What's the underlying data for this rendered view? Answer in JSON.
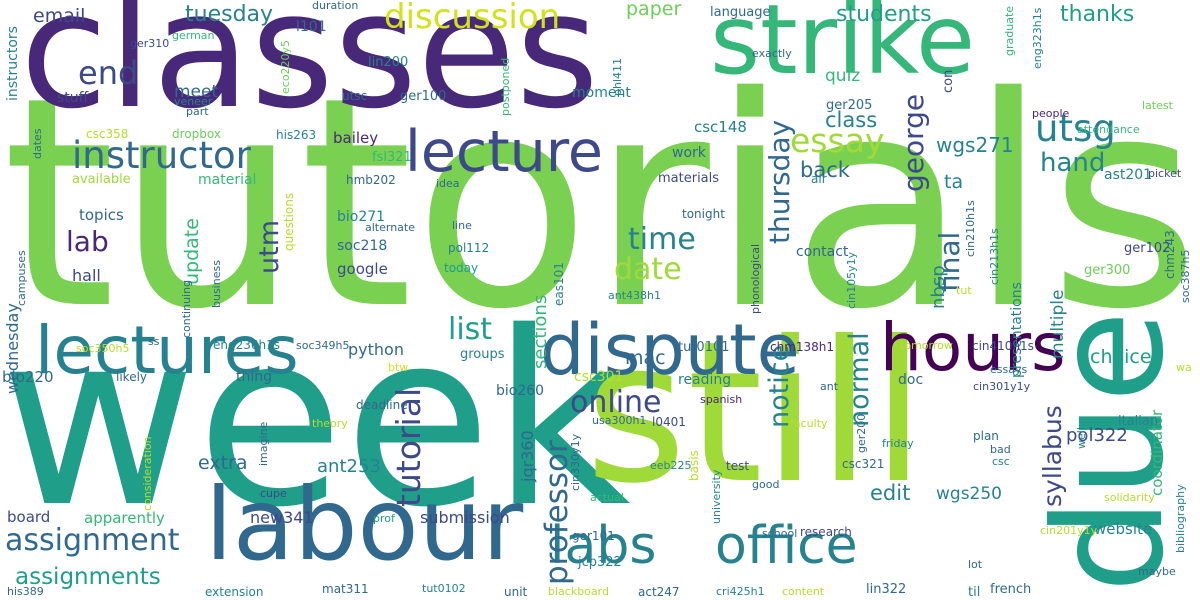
{
  "palette": {
    "dark_purple": "#440154",
    "purple": "#482878",
    "indigo": "#3e4989",
    "blue": "#31688e",
    "teal_blue": "#26828e",
    "teal": "#1f9e89",
    "green": "#35b779",
    "lime": "#6ece58",
    "yellow_green": "#b5de2b",
    "yellow": "#fde725"
  },
  "words": [
    {
      "text": "tutorials",
      "color": "#7ad151"
    },
    {
      "text": "week",
      "color": "#1f9e89"
    },
    {
      "text": "classes",
      "color": "#482878"
    },
    {
      "text": "still",
      "color": "#a0da39"
    },
    {
      "text": "strike",
      "color": "#35b779"
    },
    {
      "text": "due",
      "color": "#1f9e89"
    },
    {
      "text": "labour",
      "color": "#31688e"
    },
    {
      "text": "lectures",
      "color": "#26828e"
    },
    {
      "text": "dispute",
      "color": "#31688e"
    },
    {
      "text": "hours",
      "color": "#440154"
    },
    {
      "text": "lecture",
      "color": "#3e4989"
    },
    {
      "text": "labs",
      "color": "#26828e"
    },
    {
      "text": "office",
      "color": "#26828e"
    },
    {
      "text": "instructor",
      "color": "#31688e"
    },
    {
      "text": "utsg",
      "color": "#26828e"
    },
    {
      "text": "essay",
      "color": "#a0da39"
    },
    {
      "text": "tutorial",
      "color": "#3e4989"
    },
    {
      "text": "professor",
      "color": "#31688e"
    },
    {
      "text": "discussion",
      "color": "#d2e21b"
    },
    {
      "text": "online",
      "color": "#3e4989"
    },
    {
      "text": "end",
      "color": "#3e4989"
    },
    {
      "text": "assignment",
      "color": "#31688e"
    },
    {
      "text": "assignments",
      "color": "#1f9e89"
    },
    {
      "text": "george",
      "color": "#3e4989"
    },
    {
      "text": "thursday",
      "color": "#31688e"
    },
    {
      "text": "time",
      "color": "#26828e"
    },
    {
      "text": "date",
      "color": "#a0da39"
    },
    {
      "text": "list",
      "color": "#1f9e89"
    },
    {
      "text": "hand",
      "color": "#26828e"
    },
    {
      "text": "notice",
      "color": "#26828e"
    },
    {
      "text": "final",
      "color": "#31688e"
    },
    {
      "text": "normal",
      "color": "#26828e"
    },
    {
      "text": "syllabus",
      "color": "#3e4989"
    },
    {
      "text": "lab",
      "color": "#482878"
    },
    {
      "text": "utm",
      "color": "#3e4989"
    },
    {
      "text": "tuesday",
      "color": "#26828e"
    },
    {
      "text": "students",
      "color": "#1f9e89"
    },
    {
      "text": "thanks",
      "color": "#1f9e89"
    },
    {
      "text": "email",
      "color": "#3e4989"
    },
    {
      "text": "paper",
      "color": "#6ece58"
    },
    {
      "text": "quiz",
      "color": "#35b779"
    },
    {
      "text": "meet",
      "color": "#31688e"
    },
    {
      "text": "wgs271",
      "color": "#26828e"
    },
    {
      "text": "class",
      "color": "#26828e"
    },
    {
      "text": "update",
      "color": "#35b779"
    },
    {
      "text": "back",
      "color": "#31688e"
    },
    {
      "text": "ta",
      "color": "#26828e"
    },
    {
      "text": "nbsp",
      "color": "#26828e"
    },
    {
      "text": "edit",
      "color": "#26828e"
    },
    {
      "text": "choice",
      "color": "#1f9e89"
    },
    {
      "text": "multiple",
      "color": "#26828e"
    },
    {
      "text": "extra",
      "color": "#31688e"
    },
    {
      "text": "wednesday",
      "color": "#31688e"
    },
    {
      "text": "ant253",
      "color": "#26828e"
    },
    {
      "text": "mac",
      "color": "#31688e"
    },
    {
      "text": "sections",
      "color": "#35b779"
    },
    {
      "text": "pol322",
      "color": "#3e4989"
    },
    {
      "text": "wgs250",
      "color": "#26828e"
    },
    {
      "text": "presentations",
      "color": "#26828e"
    },
    {
      "text": "coordinator",
      "color": "#35b779"
    },
    {
      "text": "python",
      "color": "#31688e"
    },
    {
      "text": "new341",
      "color": "#3e4989"
    },
    {
      "text": "submission",
      "color": "#3e4989"
    },
    {
      "text": "board",
      "color": "#3e4989"
    },
    {
      "text": "apparently",
      "color": "#35b779"
    },
    {
      "text": "jqr360",
      "color": "#31688e"
    },
    {
      "text": "bio220",
      "color": "#31688e"
    },
    {
      "text": "topics",
      "color": "#31688e"
    },
    {
      "text": "hall",
      "color": "#3e4989"
    },
    {
      "text": "google",
      "color": "#3e4989"
    },
    {
      "text": "soc218",
      "color": "#31688e"
    },
    {
      "text": "bio271",
      "color": "#26828e"
    },
    {
      "text": "available",
      "color": "#a0da39"
    },
    {
      "text": "material",
      "color": "#35b779"
    },
    {
      "text": "bailey",
      "color": "#482878"
    },
    {
      "text": "stuff",
      "color": "#3e4989"
    },
    {
      "text": "instructors",
      "color": "#26828e"
    },
    {
      "text": "csc148",
      "color": "#26828e"
    },
    {
      "text": "work",
      "color": "#31688e"
    },
    {
      "text": "materials",
      "color": "#3e4989"
    },
    {
      "text": "contact",
      "color": "#31688e"
    },
    {
      "text": "doc",
      "color": "#31688e"
    },
    {
      "text": "reading",
      "color": "#26828e"
    },
    {
      "text": "bio260",
      "color": "#31688e"
    },
    {
      "text": "csc301",
      "color": "#b5de2b"
    },
    {
      "text": "thing",
      "color": "#31688e"
    },
    {
      "text": "groups",
      "color": "#26828e"
    },
    {
      "text": "questions",
      "color": "#b5de2b"
    },
    {
      "text": "moment",
      "color": "#26828e"
    },
    {
      "text": "language",
      "color": "#31688e"
    },
    {
      "text": "con",
      "color": "#3e4989"
    },
    {
      "text": "ger205",
      "color": "#31688e"
    },
    {
      "text": "ast201",
      "color": "#26828e"
    },
    {
      "text": "ger102",
      "color": "#3e4989"
    },
    {
      "text": "ger300",
      "color": "#6ece58"
    },
    {
      "text": "website",
      "color": "#26828e"
    },
    {
      "text": "bibliography",
      "color": "#26828e"
    },
    {
      "text": "picket",
      "color": "#3e4989"
    },
    {
      "text": "people",
      "color": "#482878"
    },
    {
      "text": "attendance",
      "color": "#35b779"
    },
    {
      "text": "latest",
      "color": "#6ece58"
    },
    {
      "text": "graduate",
      "color": "#35b779"
    },
    {
      "text": "eng323h1s",
      "color": "#26828e"
    },
    {
      "text": "l101",
      "color": "#31688e"
    },
    {
      "text": "duration",
      "color": "#31688e"
    },
    {
      "text": "ger310",
      "color": "#3e4989"
    },
    {
      "text": "german",
      "color": "#35b779"
    },
    {
      "text": "part",
      "color": "#31688e"
    },
    {
      "text": "veneer",
      "color": "#26828e"
    },
    {
      "text": "eco220y5",
      "color": "#6ece58"
    },
    {
      "text": "utsc",
      "color": "#31688e"
    },
    {
      "text": "lin200",
      "color": "#26828e"
    },
    {
      "text": "ger100",
      "color": "#31688e"
    },
    {
      "text": "csc358",
      "color": "#b5de2b"
    },
    {
      "text": "dropbox",
      "color": "#6ece58"
    },
    {
      "text": "his263",
      "color": "#26828e"
    },
    {
      "text": "fsl321",
      "color": "#35b779"
    },
    {
      "text": "hmb202",
      "color": "#31688e"
    },
    {
      "text": "idea",
      "color": "#31688e"
    },
    {
      "text": "postponed",
      "color": "#35b779"
    },
    {
      "text": "phl411",
      "color": "#26828e"
    },
    {
      "text": "exactly",
      "color": "#31688e"
    },
    {
      "text": "dates",
      "color": "#31688e"
    },
    {
      "text": "tonight",
      "color": "#31688e"
    },
    {
      "text": "air",
      "color": "#26828e"
    },
    {
      "text": "line",
      "color": "#31688e"
    },
    {
      "text": "alternate",
      "color": "#31688e"
    },
    {
      "text": "pol112",
      "color": "#26828e"
    },
    {
      "text": "today",
      "color": "#1f9e89"
    },
    {
      "text": "business",
      "color": "#31688e"
    },
    {
      "text": "campuses",
      "color": "#31688e"
    },
    {
      "text": "continuing",
      "color": "#31688e"
    },
    {
      "text": "eas101",
      "color": "#26828e"
    },
    {
      "text": "cin105y1y",
      "color": "#26828e"
    },
    {
      "text": "cin210h1s",
      "color": "#31688e"
    },
    {
      "text": "cin213h1s",
      "color": "#26828e"
    },
    {
      "text": "chm243",
      "color": "#31688e"
    },
    {
      "text": "soc387h5",
      "color": "#31688e"
    },
    {
      "text": "phonological",
      "color": "#3e4989"
    },
    {
      "text": "tut",
      "color": "#b5de2b"
    },
    {
      "text": "ant438h1",
      "color": "#26828e"
    },
    {
      "text": "soc350h5",
      "color": "#b5de2b"
    },
    {
      "text": "ss",
      "color": "#31688e"
    },
    {
      "text": "eng236h1s",
      "color": "#26828e"
    },
    {
      "text": "soc349h5",
      "color": "#31688e"
    },
    {
      "text": "tut0101",
      "color": "#31688e"
    },
    {
      "text": "chm138h1",
      "color": "#482878"
    },
    {
      "text": "tomorrow",
      "color": "#b5de2b"
    },
    {
      "text": "cin410h1s",
      "color": "#3e4989"
    },
    {
      "text": "btw",
      "color": "#d2e21b"
    },
    {
      "text": "likely",
      "color": "#31688e"
    },
    {
      "text": "deadline",
      "color": "#31688e"
    },
    {
      "text": "essays",
      "color": "#31688e"
    },
    {
      "text": "cin301y1y",
      "color": "#3e4989"
    },
    {
      "text": "ant",
      "color": "#31688e"
    },
    {
      "text": "spanish",
      "color": "#482878"
    },
    {
      "text": "italian",
      "color": "#26828e"
    },
    {
      "text": "faculty",
      "color": "#b5de2b"
    },
    {
      "text": "ger200",
      "color": "#31688e"
    },
    {
      "text": "usa300h1",
      "color": "#31688e"
    },
    {
      "text": "l0401",
      "color": "#3e4989"
    },
    {
      "text": "theory",
      "color": "#b5de2b"
    },
    {
      "text": "imagine",
      "color": "#31688e"
    },
    {
      "text": "consideration",
      "color": "#b5de2b"
    },
    {
      "text": "friday",
      "color": "#26828e"
    },
    {
      "text": "plan",
      "color": "#31688e"
    },
    {
      "text": "bad",
      "color": "#31688e"
    },
    {
      "text": "csc",
      "color": "#26828e"
    },
    {
      "text": "well",
      "color": "#26828e"
    },
    {
      "text": "csc321",
      "color": "#31688e"
    },
    {
      "text": "eeb225",
      "color": "#26828e"
    },
    {
      "text": "test",
      "color": "#3e4989"
    },
    {
      "text": "cupe",
      "color": "#3e4989"
    },
    {
      "text": "cin330y1y",
      "color": "#31688e"
    },
    {
      "text": "basis",
      "color": "#b5de2b"
    },
    {
      "text": "university",
      "color": "#26828e"
    },
    {
      "text": "actual",
      "color": "#35b779"
    },
    {
      "text": "good",
      "color": "#31688e"
    },
    {
      "text": "solidarity",
      "color": "#b5de2b"
    },
    {
      "text": "school",
      "color": "#31688e"
    },
    {
      "text": "research",
      "color": "#3e4989"
    },
    {
      "text": "prof",
      "color": "#1f9e89"
    },
    {
      "text": "ger101",
      "color": "#31688e"
    },
    {
      "text": "cin201y1y",
      "color": "#b5de2b"
    },
    {
      "text": "maybe",
      "color": "#31688e"
    },
    {
      "text": "his389",
      "color": "#31688e"
    },
    {
      "text": "jcp322",
      "color": "#26828e"
    },
    {
      "text": "lot",
      "color": "#31688e"
    },
    {
      "text": "extension",
      "color": "#26828e"
    },
    {
      "text": "mat311",
      "color": "#31688e"
    },
    {
      "text": "tut0102",
      "color": "#26828e"
    },
    {
      "text": "unit",
      "color": "#31688e"
    },
    {
      "text": "blackboard",
      "color": "#b5de2b"
    },
    {
      "text": "act247",
      "color": "#31688e"
    },
    {
      "text": "cri425h1",
      "color": "#26828e"
    },
    {
      "text": "content",
      "color": "#b5de2b"
    },
    {
      "text": "lin322",
      "color": "#31688e"
    },
    {
      "text": "til",
      "color": "#26828e"
    },
    {
      "text": "french",
      "color": "#31688e"
    },
    {
      "text": "wa",
      "color": "#b5de2b"
    }
  ]
}
